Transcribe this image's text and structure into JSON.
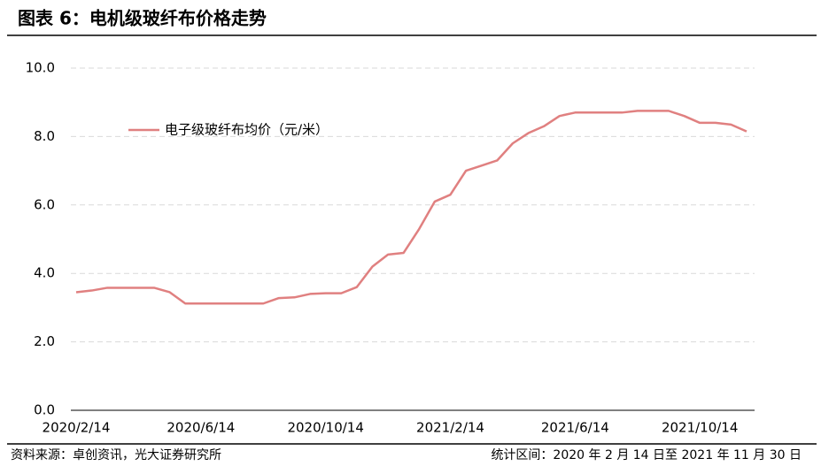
{
  "chart_data": {
    "type": "line",
    "title": "图表 6：电机级玻纤布价格走势",
    "source": "资料来源：卓创资讯，光大证券研究所",
    "note": "统计区间：2020 年 2 月 14 日至 2021 年 11 月 30 日",
    "categories": [
      "2020/2/14",
      null,
      null,
      null,
      null,
      null,
      null,
      null,
      "2020/6/14",
      null,
      null,
      null,
      null,
      null,
      null,
      null,
      "2020/10/14",
      null,
      null,
      null,
      null,
      null,
      null,
      null,
      "2021/2/14",
      null,
      null,
      null,
      null,
      null,
      null,
      null,
      "2021/6/14",
      null,
      null,
      null,
      null,
      null,
      null,
      null,
      "2021/10/14",
      null,
      null,
      null
    ],
    "series": [
      {
        "name": "电子级玻纤布均价（元/米）",
        "color": "#e08080",
        "values": [
          3.45,
          3.5,
          3.58,
          3.58,
          3.58,
          3.58,
          3.45,
          3.12,
          3.12,
          3.12,
          3.12,
          3.12,
          3.12,
          3.28,
          3.3,
          3.4,
          3.42,
          3.42,
          3.6,
          4.2,
          4.55,
          4.6,
          5.3,
          6.1,
          6.3,
          7.0,
          7.15,
          7.3,
          7.8,
          8.1,
          8.3,
          8.6,
          8.7,
          8.7,
          8.7,
          8.7,
          8.75,
          8.75,
          8.75,
          8.6,
          8.4,
          8.4,
          8.35,
          8.15
        ]
      }
    ],
    "ylim": [
      0,
      10
    ],
    "yticks": [
      {
        "value": 0,
        "label": "0.0"
      },
      {
        "value": 2,
        "label": "2.0"
      },
      {
        "value": 4,
        "label": "4.0"
      },
      {
        "value": 6,
        "label": "6.0"
      },
      {
        "value": 8,
        "label": "8.0"
      },
      {
        "value": 10,
        "label": "10.0"
      }
    ],
    "grid": true
  }
}
